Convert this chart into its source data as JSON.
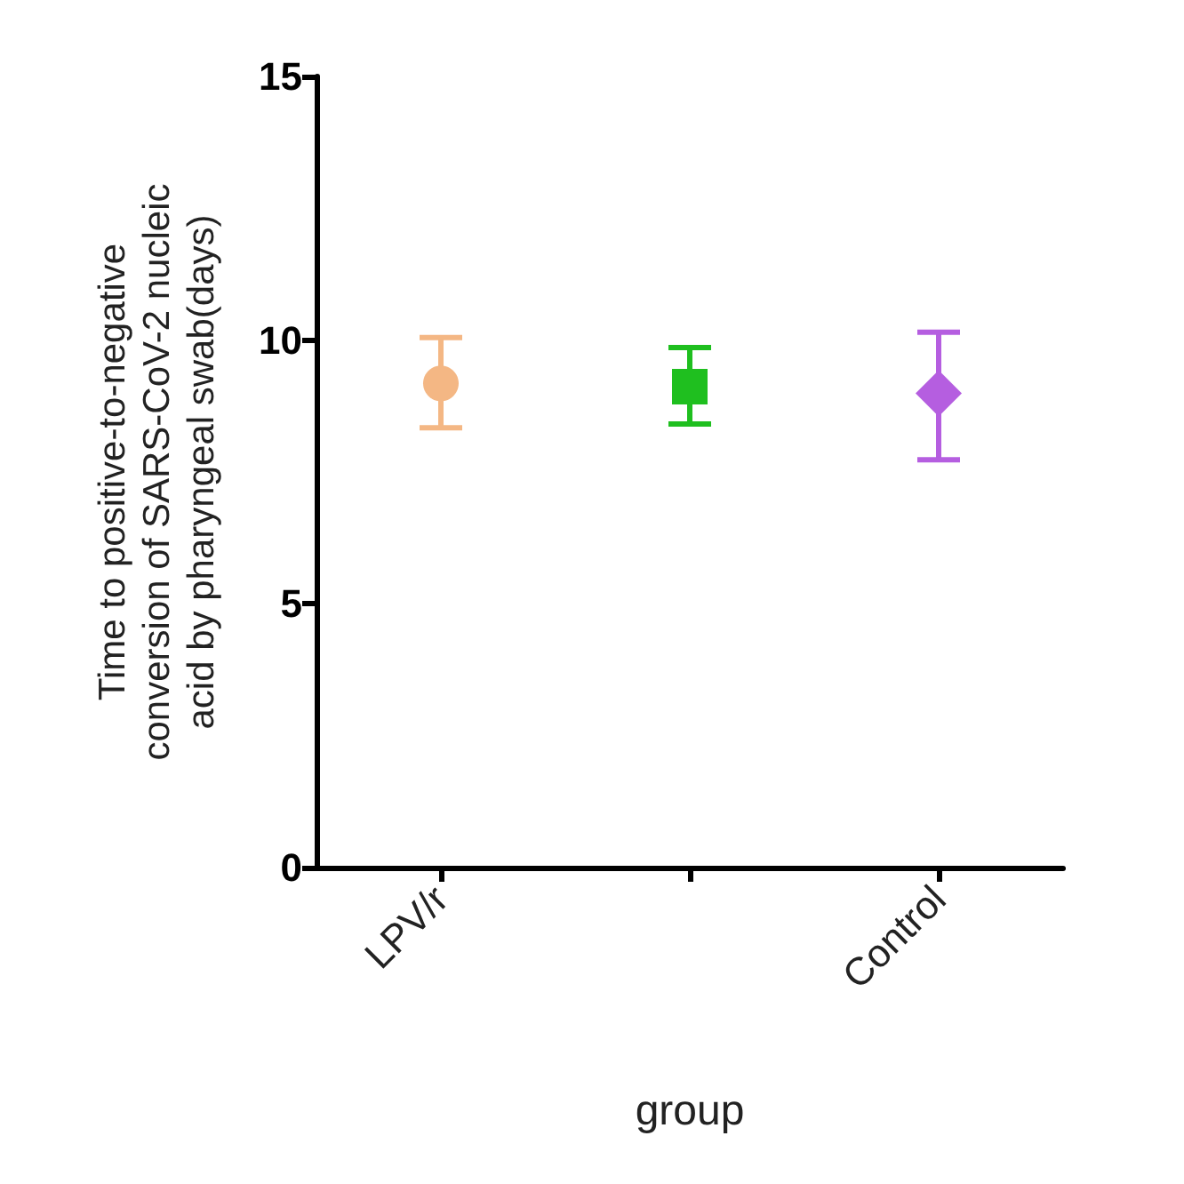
{
  "chart_data": {
    "type": "scatter",
    "xlabel": "group",
    "ylabel": "Time to positive-to-negative\nconversion of SARS-CoV-2 nucleic\nacid by pharyngeal swab(days)",
    "categories": [
      "LPV/r",
      null,
      "Control"
    ],
    "series": [
      {
        "color": "#f4b784",
        "marker": "circle",
        "values": [
          9.18,
          null,
          null
        ],
        "errors": [
          [
            8.34,
            10.05
          ],
          null,
          null
        ]
      },
      {
        "color": "#1fbf1f",
        "marker": "square",
        "values": [
          null,
          9.12,
          null
        ],
        "errors": [
          null,
          [
            8.41,
            9.86
          ],
          null
        ]
      },
      {
        "color": "#b55ee0",
        "marker": "diamond",
        "values": [
          null,
          null,
          8.99
        ],
        "errors": [
          null,
          null,
          [
            7.73,
            10.15
          ]
        ]
      }
    ],
    "ylim": [
      0,
      15
    ],
    "yticks": [
      0,
      5,
      10,
      15
    ],
    "grid": false
  }
}
